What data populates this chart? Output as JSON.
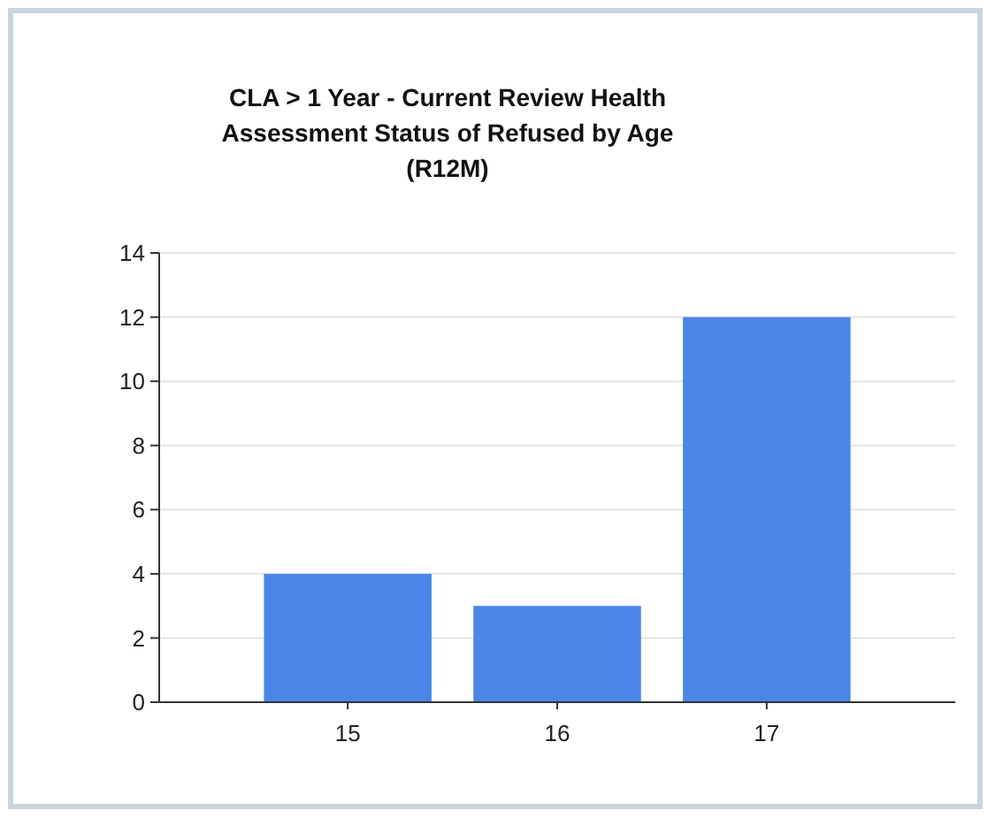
{
  "chart_data": {
    "type": "bar",
    "title": "CLA > 1 Year - Current Review Health\nAssessment Status of Refused by Age\n(R12M)",
    "categories": [
      "15",
      "16",
      "17"
    ],
    "values": [
      4,
      3,
      12
    ],
    "color": "#4a86e8",
    "ylim": [
      0,
      14
    ],
    "yticks": [
      0,
      2,
      4,
      6,
      8,
      10,
      12,
      14
    ],
    "grid": "y"
  }
}
